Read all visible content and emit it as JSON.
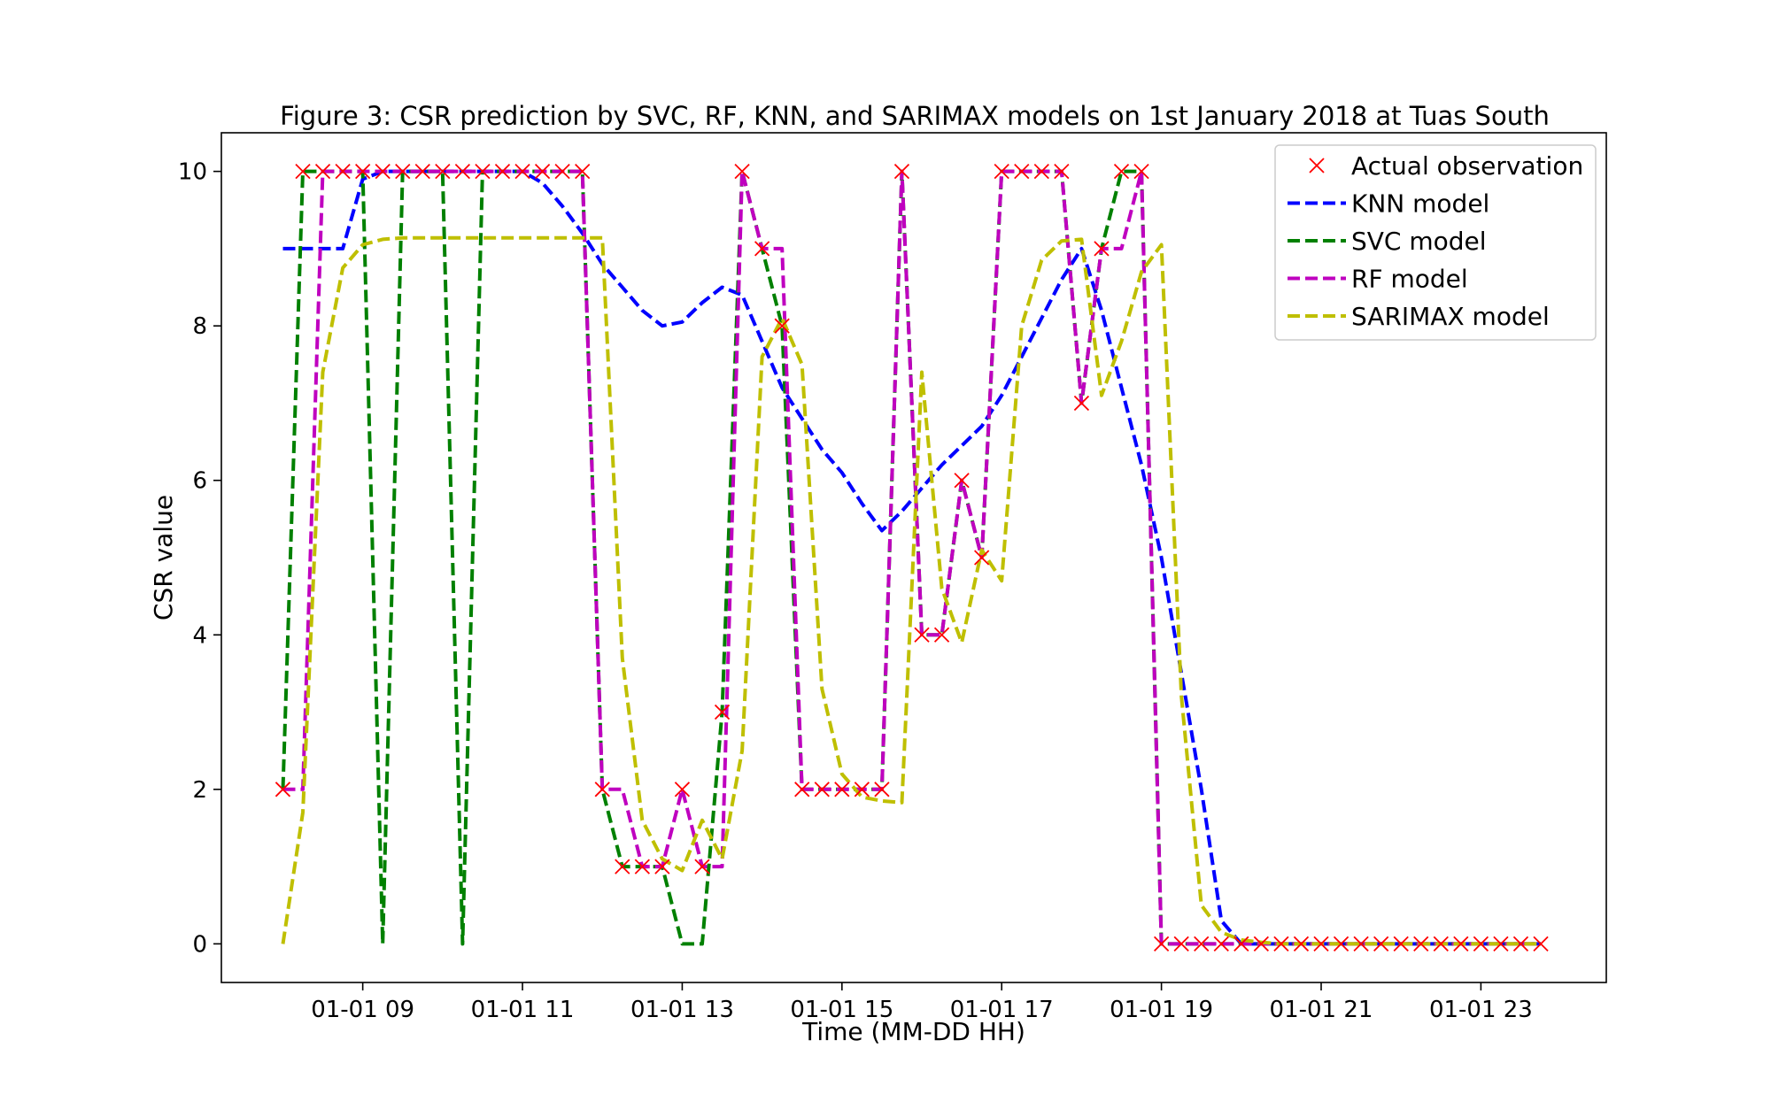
{
  "chart_data": {
    "type": "line",
    "title": "Figure 3: CSR prediction by SVC, RF, KNN, and SARIMAX models on 1st January 2018 at Tuas South",
    "xlabel": "Time (MM-DD HH)",
    "ylabel": "CSR value",
    "x_unit": "hour of day, 2018-01-01",
    "xlim": [
      7.23,
      24.57
    ],
    "ylim": [
      -0.5,
      10.5
    ],
    "x_ticks": [
      {
        "value": 9,
        "label": "01-01 09"
      },
      {
        "value": 11,
        "label": "01-01 11"
      },
      {
        "value": 13,
        "label": "01-01 13"
      },
      {
        "value": 15,
        "label": "01-01 15"
      },
      {
        "value": 17,
        "label": "01-01 17"
      },
      {
        "value": 19,
        "label": "01-01 19"
      },
      {
        "value": 21,
        "label": "01-01 21"
      },
      {
        "value": 23,
        "label": "01-01 23"
      }
    ],
    "y_ticks": [
      {
        "value": 0,
        "label": "0"
      },
      {
        "value": 2,
        "label": "2"
      },
      {
        "value": 4,
        "label": "4"
      },
      {
        "value": 6,
        "label": "6"
      },
      {
        "value": 8,
        "label": "8"
      },
      {
        "value": 10,
        "label": "10"
      }
    ],
    "grid": false,
    "legend_position": "top-right",
    "x": [
      8.0,
      8.25,
      8.5,
      8.75,
      9.0,
      9.25,
      9.5,
      9.75,
      10.0,
      10.25,
      10.5,
      10.75,
      11.0,
      11.25,
      11.5,
      11.75,
      12.0,
      12.25,
      12.5,
      12.75,
      13.0,
      13.25,
      13.5,
      13.75,
      14.0,
      14.25,
      14.5,
      14.75,
      15.0,
      15.25,
      15.5,
      15.75,
      16.0,
      16.25,
      16.5,
      16.75,
      17.0,
      17.25,
      17.5,
      17.75,
      18.0,
      18.25,
      18.5,
      18.75,
      19.0,
      19.25,
      19.5,
      19.75,
      20.0,
      20.25,
      20.5,
      20.75,
      21.0,
      21.25,
      21.5,
      21.75,
      22.0,
      22.25,
      22.5,
      22.75,
      23.0,
      23.25,
      23.5,
      23.75
    ],
    "series": [
      {
        "name": "Actual observation",
        "style": "marker-x",
        "color": "#ff0000",
        "values": [
          2,
          10,
          10,
          10,
          10,
          10,
          10,
          10,
          10,
          10,
          10,
          10,
          10,
          10,
          10,
          10,
          2,
          1,
          1,
          1,
          2,
          1,
          3,
          10,
          9,
          8,
          2,
          2,
          2,
          2,
          2,
          10,
          4,
          4,
          6,
          5,
          10,
          10,
          10,
          10,
          7,
          9,
          10,
          10,
          0,
          0,
          0,
          0,
          0,
          0,
          0,
          0,
          0,
          0,
          0,
          0,
          0,
          0,
          0,
          0,
          0,
          0,
          0,
          0
        ]
      },
      {
        "name": "KNN model",
        "style": "dashed",
        "color": "#0000ff",
        "values": [
          9.0,
          9.0,
          9.0,
          9.0,
          9.9,
          10.0,
          10.0,
          10.0,
          10.0,
          10.0,
          10.0,
          10.0,
          10.0,
          9.85,
          9.55,
          9.2,
          8.8,
          8.5,
          8.2,
          8.0,
          8.05,
          8.3,
          8.5,
          8.4,
          7.8,
          7.2,
          6.8,
          6.4,
          6.1,
          5.7,
          5.35,
          5.6,
          5.9,
          6.2,
          6.45,
          6.7,
          7.1,
          7.6,
          8.1,
          8.6,
          9.0,
          8.2,
          7.2,
          6.2,
          5.0,
          3.5,
          2.0,
          0.3,
          0.0,
          0.0,
          0.0,
          0.0,
          0.0,
          0.0,
          0.0,
          0.0,
          0.0,
          0.0,
          0.0,
          0.0,
          0.0,
          0.0,
          0.0,
          0.0
        ]
      },
      {
        "name": "SVC model",
        "style": "dashed",
        "color": "#008000",
        "values": [
          2,
          10,
          10,
          10,
          10,
          0,
          10,
          10,
          10,
          0,
          10,
          10,
          10,
          10,
          10,
          10,
          2,
          1,
          1,
          1,
          0,
          0,
          3,
          10,
          9,
          8,
          2,
          2,
          2,
          2,
          2,
          10,
          4,
          4,
          6,
          5,
          10,
          10,
          10,
          10,
          7,
          9,
          10,
          10,
          0,
          0,
          0,
          0,
          0,
          0,
          0,
          0,
          0,
          0,
          0,
          0,
          0,
          0,
          0,
          0,
          0,
          0,
          0,
          0
        ]
      },
      {
        "name": "RF model",
        "style": "dashed",
        "color": "#bf00bf",
        "values": [
          2,
          2,
          10,
          10,
          10,
          10,
          10,
          10,
          10,
          10,
          10,
          10,
          10,
          10,
          10,
          10,
          2,
          2,
          1,
          1,
          2,
          1,
          1,
          10,
          9,
          9,
          2,
          2,
          2,
          2,
          2,
          10,
          4,
          4,
          6,
          5,
          10,
          10,
          10,
          10,
          7,
          9,
          9,
          10,
          0,
          0,
          0,
          0,
          0,
          0,
          0,
          0,
          0,
          0,
          0,
          0,
          0,
          0,
          0,
          0,
          0,
          0,
          0,
          0
        ]
      },
      {
        "name": "SARIMAX model",
        "style": "dashed",
        "color": "#bfbf00",
        "values": [
          0.0,
          1.7,
          7.4,
          8.75,
          9.05,
          9.12,
          9.14,
          9.14,
          9.14,
          9.14,
          9.14,
          9.14,
          9.14,
          9.14,
          9.14,
          9.14,
          9.14,
          3.7,
          1.6,
          1.1,
          0.95,
          1.6,
          1.1,
          2.5,
          7.6,
          8.1,
          7.5,
          3.3,
          2.2,
          1.9,
          1.85,
          1.83,
          7.4,
          4.6,
          3.9,
          5.1,
          4.7,
          8.0,
          8.85,
          9.1,
          9.12,
          7.1,
          7.8,
          8.7,
          9.05,
          3.2,
          0.5,
          0.15,
          0.05,
          0.02,
          0.0,
          0.0,
          0.0,
          0.0,
          0.0,
          0.0,
          0.0,
          0.0,
          0.0,
          0.0,
          0.0,
          0.0,
          0.0,
          0.0
        ]
      }
    ]
  }
}
